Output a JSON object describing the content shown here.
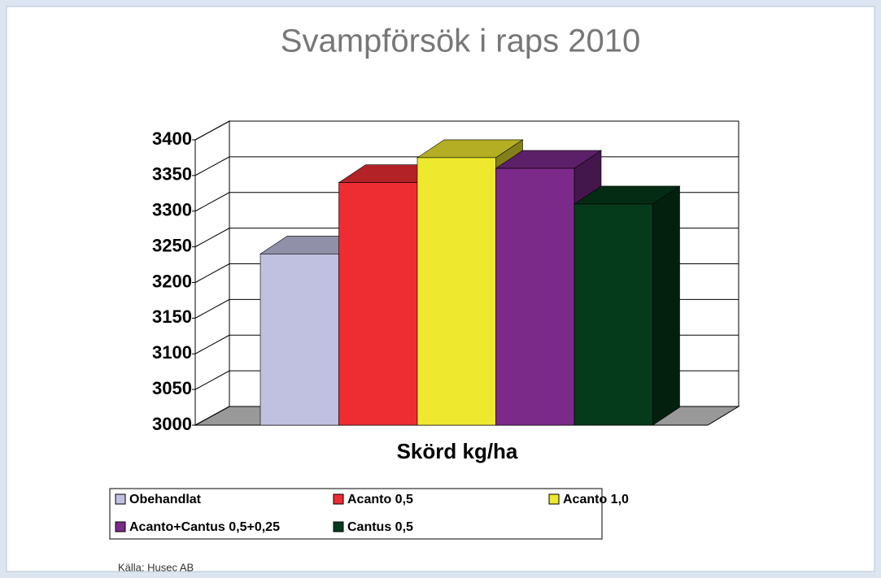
{
  "chart_data": {
    "type": "bar3d",
    "title": "Svampförsök i raps 2010",
    "x_label": "Skörd kg/ha",
    "categories": [
      null
    ],
    "series": [
      {
        "name": "Obehandlat",
        "color": "#c0c0e0",
        "values": [
          3240
        ]
      },
      {
        "name": "Acanto  0,5",
        "color": "#ee2d32",
        "values": [
          3340
        ]
      },
      {
        "name": "Acanto  1,0",
        "color": "#eee82e",
        "values": [
          3375
        ]
      },
      {
        "name": "Acanto+Cantus 0,5+0,25",
        "color": "#7b2a8a",
        "values": [
          3360
        ]
      },
      {
        "name": "Cantus 0,5",
        "color": "#053a1b",
        "values": [
          3310
        ]
      }
    ],
    "ylim": [
      3000,
      3400
    ],
    "yticks": [
      3000,
      3050,
      3100,
      3150,
      3200,
      3250,
      3300,
      3350,
      3400
    ],
    "grid": true,
    "legend": "bottom",
    "source": "Källa: Husec AB"
  }
}
